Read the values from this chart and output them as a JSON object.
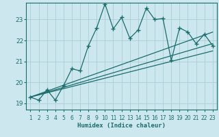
{
  "xlabel": "Humidex (Indice chaleur)",
  "ylabel": "",
  "bg_color": "#cce8ee",
  "grid_color": "#aacdd6",
  "line_color": "#1a6b6b",
  "xlim": [
    0.5,
    23.5
  ],
  "ylim": [
    18.7,
    23.8
  ],
  "xticks": [
    1,
    2,
    3,
    4,
    5,
    6,
    7,
    8,
    9,
    10,
    11,
    12,
    13,
    14,
    15,
    16,
    17,
    18,
    19,
    20,
    21,
    22,
    23
  ],
  "yticks": [
    19,
    20,
    21,
    22,
    23
  ],
  "series1_x": [
    1,
    2,
    3,
    4,
    5,
    6,
    7,
    8,
    9,
    10,
    11,
    12,
    13,
    14,
    15,
    16,
    17,
    18,
    19,
    20,
    21,
    22,
    23
  ],
  "series1_y": [
    19.3,
    19.15,
    19.65,
    19.15,
    19.85,
    20.65,
    20.55,
    21.75,
    22.6,
    23.75,
    22.55,
    23.1,
    22.1,
    22.5,
    23.55,
    23.0,
    23.05,
    21.05,
    22.6,
    22.4,
    21.85,
    22.3,
    21.75
  ],
  "trend1_x": [
    1,
    23
  ],
  "trend1_y": [
    19.3,
    22.4
  ],
  "trend2_x": [
    1,
    23
  ],
  "trend2_y": [
    19.3,
    21.85
  ],
  "trend3_x": [
    1,
    23
  ],
  "trend3_y": [
    19.3,
    21.5
  ]
}
